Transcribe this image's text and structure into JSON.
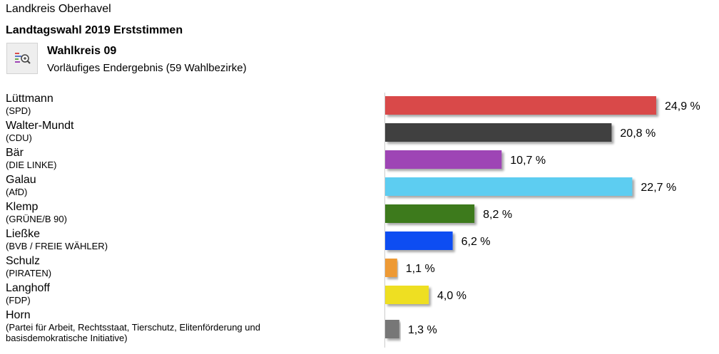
{
  "header": {
    "region": "Landkreis Oberhavel",
    "title": "Landtagswahl 2019 Erststimmen",
    "icon": "chart-zoom-icon",
    "constituency": "Wahlkreis 09",
    "status": "Vorläufiges Endergebnis (59 Wahlbezirke)"
  },
  "chart_data": {
    "type": "bar",
    "orientation": "horizontal",
    "xlim": [
      0,
      30
    ],
    "grid": false,
    "categories": [
      "Lüttmann",
      "Walter-Mundt",
      "Bär",
      "Galau",
      "Klemp",
      "Ließke",
      "Schulz",
      "Langhoff",
      "Horn"
    ],
    "parties": [
      "(SPD)",
      "(CDU)",
      "(DIE LINKE)",
      "(AfD)",
      "(GRÜNE/B 90)",
      "(BVB / FREIE WÄHLER)",
      "(PIRATEN)",
      "(FDP)",
      "(Partei für Arbeit, Rechtsstaat, Tierschutz, Elitenförderung und basisdemokratische Initiative)"
    ],
    "values": [
      24.9,
      20.8,
      10.7,
      22.7,
      8.2,
      6.2,
      1.1,
      4.0,
      1.3
    ],
    "value_labels": [
      "24,9 %",
      "20,8 %",
      "10,7 %",
      "22,7 %",
      "8,2 %",
      "6,2 %",
      "1,1 %",
      "4,0 %",
      "1,3 %"
    ],
    "colors": [
      "#d94a4a",
      "#3f3f3f",
      "#9e44b5",
      "#5dcdf1",
      "#3e7a1e",
      "#0b4ef2",
      "#ee9a35",
      "#eedf22",
      "#777777"
    ]
  }
}
